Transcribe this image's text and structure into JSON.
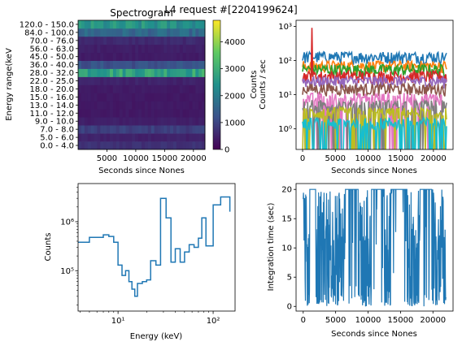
{
  "figure_title": "L4 request #[2204199624]",
  "colors": {
    "spec_low": "#440154",
    "spec_mid": "#21918c",
    "spec_high": "#fde725",
    "series_palette": [
      "#1f77b4",
      "#ff7f0e",
      "#2ca02c",
      "#d62728",
      "#9467bd",
      "#8c564b",
      "#e377c2",
      "#7f7f7f",
      "#bcbd22",
      "#17becf"
    ],
    "step_line": "#1f77b4"
  },
  "chart_data": [
    {
      "type": "heatmap",
      "title": "Spectrogram",
      "xlabel": "Seconds since Nones",
      "ylabel": "Energy range(keV",
      "xlim": [
        0,
        22000
      ],
      "xticks": [
        5000,
        10000,
        15000,
        20000
      ],
      "xtick_labels": [
        "5000",
        "10000",
        "15000",
        "20000"
      ],
      "y_categories": [
        "0.0 - 4.0",
        "5.0 - 6.0",
        "7.0 - 8.0",
        "9.0 - 10.0",
        "11.0 - 12.0",
        "13.0 - 14.0",
        "15.0 - 16.0",
        "18.0 - 20.0",
        "22.0 - 25.0",
        "28.0 - 32.0",
        "36.0 - 40.0",
        "45.0 - 50.0",
        "56.0 - 63.0",
        "70.0 - 76.0",
        "84.0 - 100.0",
        "120.0 - 150.0"
      ],
      "band_counts": [
        700,
        500,
        900,
        450,
        350,
        350,
        350,
        380,
        500,
        2800,
        1200,
        400,
        450,
        600,
        1600,
        2400
      ],
      "colorbar": {
        "label": "Counts",
        "range": [
          0,
          4800
        ],
        "ticks": [
          0,
          1000,
          2000,
          3000,
          4000
        ],
        "tick_labels": [
          "0",
          "1000",
          "2000",
          "3000",
          "4000"
        ]
      }
    },
    {
      "type": "line",
      "xlabel": "Seconds since Nones",
      "ylabel": "Counts / sec",
      "yscale": "log",
      "xlim": [
        -1000,
        23000
      ],
      "ylim": [
        0.25,
        1500
      ],
      "xticks": [
        0,
        5000,
        10000,
        15000,
        20000
      ],
      "xtick_labels": [
        "0",
        "5000",
        "10000",
        "15000",
        "20000"
      ],
      "yticks": [
        1,
        10,
        100,
        1000
      ],
      "ytick_labels": [
        "10⁰",
        "10¹",
        "10²",
        "10³"
      ],
      "series_levels": [
        130,
        70,
        55,
        35,
        25,
        15,
        8,
        5,
        3,
        1.5
      ],
      "x_range": [
        0,
        22000
      ]
    },
    {
      "type": "line",
      "step": true,
      "xlabel": "Energy (keV)",
      "ylabel": "Counts",
      "xscale": "log",
      "yscale": "log",
      "xlim": [
        3.8,
        170
      ],
      "ylim": [
        15000,
        6000000
      ],
      "xticks": [
        10,
        100
      ],
      "xtick_labels": [
        "10¹",
        "10²"
      ],
      "yticks": [
        100000,
        1000000
      ],
      "ytick_labels": [
        "10⁵",
        "10⁶"
      ],
      "bin_edges": [
        3.8,
        5,
        6,
        7,
        8,
        9,
        10,
        11,
        12,
        13,
        14,
        15,
        16,
        18,
        20,
        22,
        25,
        28,
        32,
        36,
        40,
        45,
        50,
        56,
        63,
        70,
        76,
        84,
        100,
        120,
        150
      ],
      "values": [
        380000,
        480000,
        480000,
        540000,
        500000,
        380000,
        130000,
        80000,
        100000,
        60000,
        42000,
        30000,
        55000,
        60000,
        65000,
        160000,
        130000,
        3000000,
        1200000,
        150000,
        280000,
        150000,
        240000,
        340000,
        300000,
        460000,
        1200000,
        320000,
        2200000,
        3200000,
        1600000
      ]
    },
    {
      "type": "line",
      "xlabel": "Seconds since Nones",
      "ylabel": "Integration time (sec)",
      "xlim": [
        -1100,
        23100
      ],
      "ylim": [
        -0.8,
        21
      ],
      "xticks": [
        0,
        5000,
        10000,
        15000,
        20000
      ],
      "xtick_labels": [
        "0",
        "5000",
        "10000",
        "15000",
        "20000"
      ],
      "yticks": [
        0,
        5,
        10,
        15,
        20
      ],
      "ytick_labels": [
        "0",
        "5",
        "10",
        "15",
        "20"
      ],
      "x_range": [
        0,
        22000
      ],
      "value_range": [
        0,
        20
      ]
    }
  ]
}
